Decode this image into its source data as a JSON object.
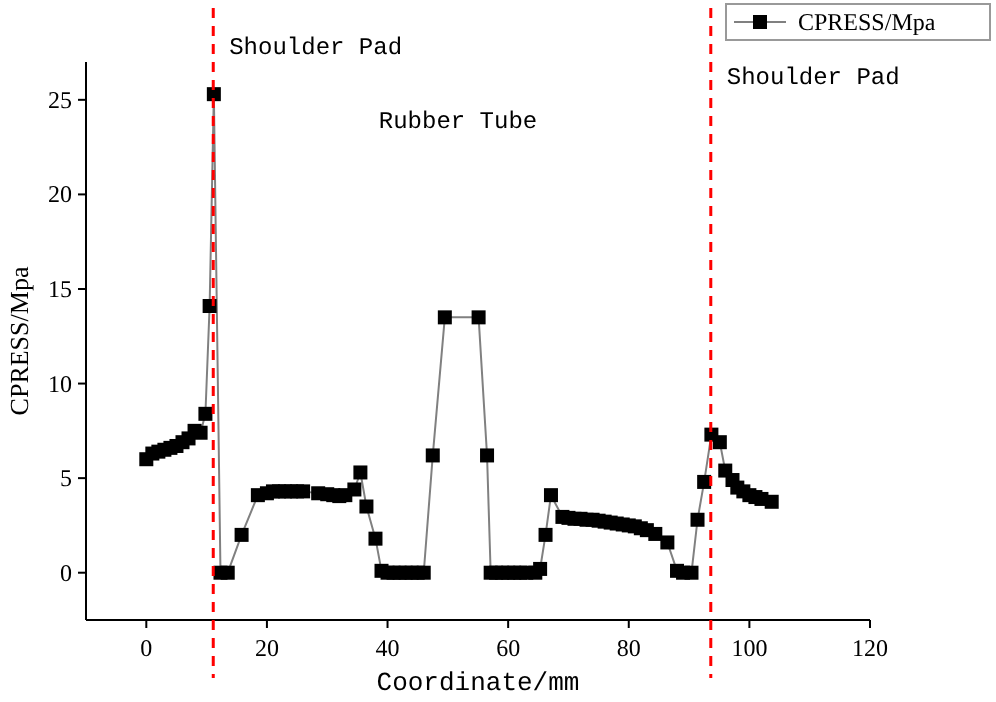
{
  "chart_data": {
    "type": "line",
    "xlabel": "Coordinate/mm",
    "ylabel": "CPRESS/Mpa",
    "xlim": [
      -10,
      120
    ],
    "xticks": [
      0,
      20,
      40,
      60,
      80,
      100,
      120
    ],
    "ylim": [
      -2.5,
      27
    ],
    "yticks": [
      0,
      5,
      10,
      15,
      20,
      25
    ],
    "marker": "square",
    "legend": "top right",
    "grid": false,
    "series": [
      {
        "name": "CPRESS/Mpa",
        "color": "#000000",
        "x": [
          0,
          1,
          2,
          3,
          4,
          5,
          6,
          7,
          8,
          9,
          9.8,
          10.5,
          11.2,
          12.3,
          13.5,
          15.8,
          18.5,
          20,
          21,
          22,
          23,
          24,
          25,
          26,
          28.5,
          30,
          31,
          32,
          33,
          34.5,
          35.5,
          36.5,
          38,
          39,
          40,
          41,
          42,
          43,
          44,
          45,
          46,
          47.5,
          49.5,
          55.1,
          56.5,
          57.1,
          58,
          59,
          60,
          61,
          62,
          63,
          64.5,
          65.3,
          66.2,
          67.1,
          69,
          70,
          71,
          72,
          73,
          74,
          75,
          76,
          77,
          78,
          79,
          80,
          81,
          82,
          83,
          84.4,
          86.4,
          88,
          89,
          90.4,
          91.4,
          92.5,
          93.7,
          95.1,
          96,
          97.2,
          98,
          99,
          100,
          101,
          102,
          103.7
        ],
        "values": [
          6.0,
          6.3,
          6.4,
          6.5,
          6.6,
          6.7,
          6.9,
          7.1,
          7.5,
          7.4,
          8.4,
          14.1,
          25.3,
          0,
          0,
          2.0,
          4.1,
          4.2,
          4.3,
          4.3,
          4.3,
          4.3,
          4.3,
          4.3,
          4.2,
          4.15,
          4.1,
          4.05,
          4.1,
          4.4,
          5.3,
          3.5,
          1.8,
          0.1,
          0,
          0,
          0,
          0,
          0,
          0,
          0,
          6.2,
          13.5,
          13.5,
          6.2,
          0,
          0,
          0,
          0,
          0,
          0,
          0,
          0,
          0.2,
          2.0,
          4.1,
          2.95,
          2.9,
          2.85,
          2.85,
          2.8,
          2.8,
          2.75,
          2.7,
          2.65,
          2.6,
          2.55,
          2.5,
          2.45,
          2.35,
          2.25,
          2.05,
          1.6,
          0.1,
          0,
          0,
          2.8,
          4.8,
          7.3,
          6.9,
          5.4,
          4.9,
          4.5,
          4.3,
          4.1,
          4.0,
          3.9,
          3.75
        ]
      }
    ],
    "ref_lines": [
      {
        "axis": "x",
        "value": 11.1,
        "label": "Shoulder Pad",
        "color": "#ff0000",
        "line_style": "dashed"
      },
      {
        "axis": "x",
        "value": 93.6,
        "label": "Shoulder Pad",
        "color": "#ff0000",
        "line_style": "dashed"
      }
    ],
    "annotations": [
      "Rubber Tube"
    ]
  }
}
